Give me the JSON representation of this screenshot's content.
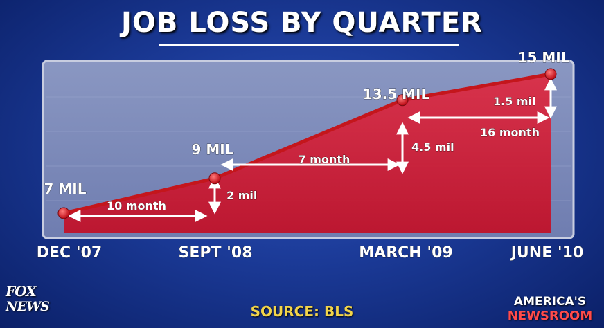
{
  "chart_data": {
    "type": "area",
    "title": "JOB LOSS BY QUARTER",
    "categories": [
      "DEC '07",
      "SEPT '08",
      "MARCH '09",
      "JUNE '10"
    ],
    "values": [
      7,
      9,
      13.5,
      15
    ],
    "value_labels": [
      "7 MIL",
      "9 MIL",
      "13.5 MIL",
      "15 MIL"
    ],
    "annotations": {
      "durations": [
        "10 month",
        "7 month",
        "16 month"
      ],
      "changes": [
        "2 mil",
        "4.5 mil",
        "1.5 mil"
      ]
    },
    "source": "SOURCE: BLS",
    "colors": {
      "line": "#c4161c",
      "area": "#d4203a",
      "point": "#ff2a2a"
    }
  },
  "logos": {
    "network_line1": "FOX",
    "network_line2": "NEWS",
    "show_line1": "AMERICA'S",
    "show_line2": "NEWSROOM"
  }
}
